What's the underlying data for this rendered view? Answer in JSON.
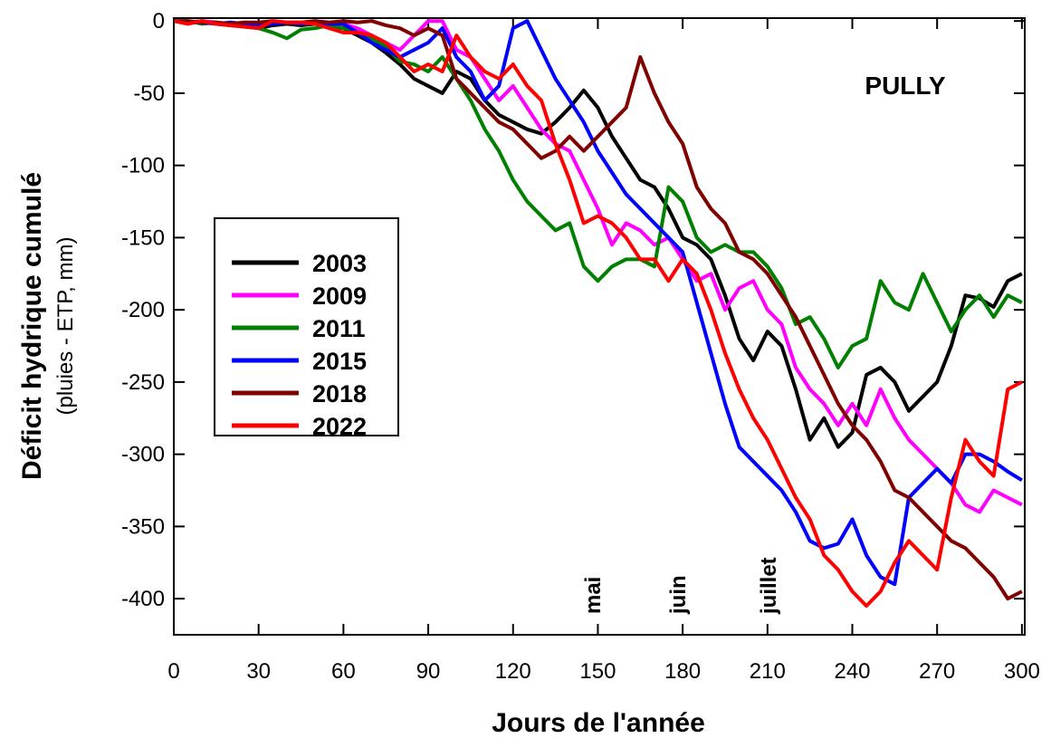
{
  "chart_data": {
    "type": "line",
    "title": "PULLY",
    "y_label": "Déficit hydrique cumulé",
    "y_sublabel": "(pluies - ETP, mm)",
    "x_label": "Jours de l'année",
    "annotations": [
      {
        "text": "mai",
        "x": 148
      },
      {
        "text": "juin",
        "x": 178
      },
      {
        "text": "juillet",
        "x": 210
      }
    ],
    "xlim": [
      0,
      301
    ],
    "ylim": [
      -425,
      2
    ],
    "xticks": [
      0,
      30,
      60,
      90,
      120,
      150,
      180,
      210,
      240,
      270,
      300
    ],
    "yticks": [
      0,
      -50,
      -100,
      -150,
      -200,
      -250,
      -300,
      -350,
      -400
    ],
    "x": [
      0,
      5,
      10,
      15,
      20,
      25,
      30,
      35,
      40,
      45,
      50,
      55,
      60,
      65,
      70,
      75,
      80,
      85,
      90,
      95,
      100,
      105,
      110,
      115,
      120,
      125,
      130,
      135,
      140,
      145,
      150,
      155,
      160,
      165,
      170,
      175,
      180,
      185,
      190,
      195,
      200,
      205,
      210,
      215,
      220,
      225,
      230,
      235,
      240,
      245,
      250,
      255,
      260,
      265,
      270,
      275,
      280,
      285,
      290,
      295,
      300
    ],
    "series": [
      {
        "name": "2003",
        "color": "#000000",
        "values": [
          0,
          -1,
          0,
          -2,
          -3,
          -4,
          -5,
          -3,
          -2,
          -3,
          -2,
          -4,
          -5,
          -10,
          -15,
          -22,
          -30,
          -40,
          -45,
          -50,
          -35,
          -40,
          -55,
          -65,
          -70,
          -75,
          -78,
          -70,
          -60,
          -48,
          -60,
          -80,
          -95,
          -110,
          -115,
          -130,
          -150,
          -155,
          -165,
          -190,
          -220,
          -235,
          -215,
          -225,
          -255,
          -290,
          -275,
          -295,
          -285,
          -245,
          -240,
          -250,
          -270,
          -260,
          -250,
          -225,
          -190,
          -192,
          -198,
          -180,
          -175
        ]
      },
      {
        "name": "2009",
        "color": "#ff00ff",
        "values": [
          0,
          -1,
          0,
          -1,
          -2,
          -1,
          -2,
          -1,
          -1,
          -2,
          -1,
          -1,
          -2,
          -5,
          -10,
          -15,
          -20,
          -10,
          0,
          0,
          -20,
          -25,
          -40,
          -55,
          -45,
          -60,
          -75,
          -85,
          -90,
          -110,
          -130,
          -155,
          -140,
          -145,
          -155,
          -150,
          -165,
          -180,
          -175,
          -200,
          -185,
          -180,
          -200,
          -210,
          -240,
          -255,
          -265,
          -280,
          -265,
          -280,
          -255,
          -275,
          -290,
          -300,
          -310,
          -320,
          -335,
          -340,
          -325,
          -330,
          -335
        ]
      },
      {
        "name": "2011",
        "color": "#008000",
        "values": [
          0,
          0,
          -2,
          -1,
          -3,
          -2,
          -5,
          -8,
          -12,
          -6,
          -5,
          -3,
          -5,
          -8,
          -12,
          -18,
          -28,
          -30,
          -35,
          -25,
          -40,
          -55,
          -75,
          -90,
          -110,
          -125,
          -135,
          -145,
          -140,
          -170,
          -180,
          -170,
          -165,
          -165,
          -170,
          -115,
          -125,
          -150,
          -160,
          -155,
          -160,
          -160,
          -170,
          -185,
          -210,
          -205,
          -220,
          -240,
          -225,
          -220,
          -180,
          -195,
          -200,
          -175,
          -195,
          -215,
          -200,
          -190,
          -205,
          -190,
          -195
        ]
      },
      {
        "name": "2015",
        "color": "#0000ff",
        "values": [
          0,
          -1,
          -1,
          -2,
          -1,
          -2,
          -3,
          -2,
          -1,
          -2,
          -1,
          -2,
          -2,
          -8,
          -15,
          -20,
          -25,
          -20,
          -15,
          -5,
          -25,
          -35,
          -55,
          -45,
          -5,
          0,
          -20,
          -40,
          -55,
          -70,
          -90,
          -105,
          -120,
          -130,
          -140,
          -150,
          -160,
          -195,
          -230,
          -265,
          -295,
          -305,
          -315,
          -325,
          -340,
          -360,
          -365,
          -362,
          -345,
          -370,
          -385,
          -390,
          -330,
          -320,
          -310,
          -320,
          -300,
          -300,
          -305,
          -312,
          -318
        ]
      },
      {
        "name": "2018",
        "color": "#800000",
        "values": [
          0,
          0,
          -1,
          -1,
          -2,
          -1,
          -1,
          0,
          -1,
          -1,
          0,
          -1,
          0,
          -1,
          0,
          -3,
          -5,
          -10,
          -5,
          -10,
          -40,
          -50,
          -60,
          -70,
          -75,
          -85,
          -95,
          -90,
          -80,
          -90,
          -80,
          -70,
          -60,
          -25,
          -50,
          -70,
          -85,
          -115,
          -130,
          -140,
          -160,
          -165,
          -175,
          -190,
          -205,
          -225,
          -245,
          -265,
          -280,
          -290,
          -305,
          -325,
          -330,
          -340,
          -350,
          -360,
          -365,
          -375,
          -385,
          -400,
          -395
        ]
      },
      {
        "name": "2022",
        "color": "#ff0000",
        "values": [
          0,
          -2,
          0,
          -2,
          -3,
          -4,
          -5,
          0,
          -1,
          -1,
          -2,
          -5,
          -8,
          -8,
          -10,
          -15,
          -25,
          -35,
          -30,
          -35,
          -10,
          -25,
          -35,
          -40,
          -30,
          -45,
          -55,
          -85,
          -110,
          -140,
          -135,
          -140,
          -150,
          -165,
          -165,
          -180,
          -165,
          -175,
          -200,
          -230,
          -255,
          -275,
          -290,
          -310,
          -330,
          -345,
          -370,
          -380,
          -395,
          -405,
          -395,
          -375,
          -360,
          -370,
          -380,
          -330,
          -290,
          -305,
          -315,
          -255,
          -250
        ]
      }
    ]
  }
}
